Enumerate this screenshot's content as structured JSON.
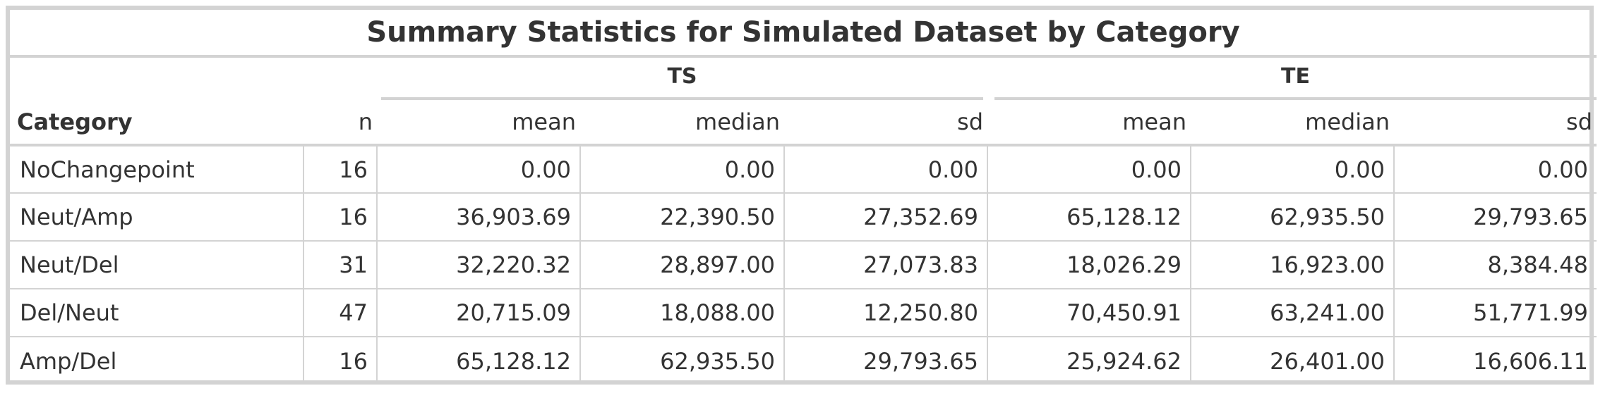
{
  "title": "Summary Statistics for Simulated Dataset by Category",
  "spanners": {
    "ts": "TS",
    "te": "TE"
  },
  "columns": {
    "category": "Category",
    "n": "n",
    "ts_mean": "mean",
    "ts_median": "median",
    "ts_sd": "sd",
    "te_mean": "mean",
    "te_median": "median",
    "te_sd": "sd"
  },
  "rows": [
    {
      "category": "NoChangepoint",
      "n": "16",
      "ts_mean": "0.00",
      "ts_median": "0.00",
      "ts_sd": "0.00",
      "te_mean": "0.00",
      "te_median": "0.00",
      "te_sd": "0.00"
    },
    {
      "category": "Neut/Amp",
      "n": "16",
      "ts_mean": "36,903.69",
      "ts_median": "22,390.50",
      "ts_sd": "27,352.69",
      "te_mean": "65,128.12",
      "te_median": "62,935.50",
      "te_sd": "29,793.65"
    },
    {
      "category": "Neut/Del",
      "n": "31",
      "ts_mean": "32,220.32",
      "ts_median": "28,897.00",
      "ts_sd": "27,073.83",
      "te_mean": "18,026.29",
      "te_median": "16,923.00",
      "te_sd": "8,384.48"
    },
    {
      "category": "Del/Neut",
      "n": "47",
      "ts_mean": "20,715.09",
      "ts_median": "18,088.00",
      "ts_sd": "12,250.80",
      "te_mean": "70,450.91",
      "te_median": "63,241.00",
      "te_sd": "51,771.99"
    },
    {
      "category": "Amp/Del",
      "n": "16",
      "ts_mean": "65,128.12",
      "ts_median": "62,935.50",
      "ts_sd": "29,793.65",
      "te_mean": "25,924.62",
      "te_median": "26,401.00",
      "te_sd": "16,606.11"
    }
  ],
  "colors": {
    "border": "#d3d3d3",
    "text": "#333333",
    "background": "#ffffff"
  }
}
